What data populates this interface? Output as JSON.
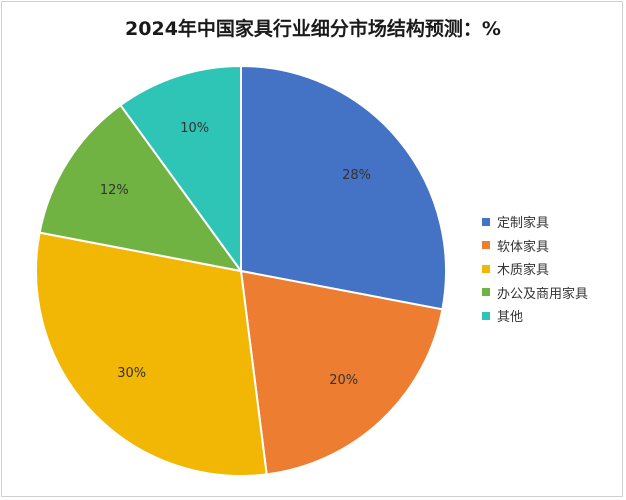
{
  "chart_data": {
    "type": "pie",
    "title": "2024年中国家具行业细分市场结构预测：%",
    "categories": [
      "定制家具",
      "软体家具",
      "木质家具",
      "办公及商用家具",
      "其他"
    ],
    "values": [
      28,
      20,
      30,
      12,
      10
    ],
    "labels": [
      "28%",
      "20%",
      "30%",
      "12%",
      "10%"
    ],
    "colors": [
      "#4472C4",
      "#ED7D31",
      "#F2B705",
      "#70B342",
      "#2EC4B6"
    ],
    "legend_position": "right",
    "start_angle": "12 o'clock",
    "direction": "clockwise"
  }
}
